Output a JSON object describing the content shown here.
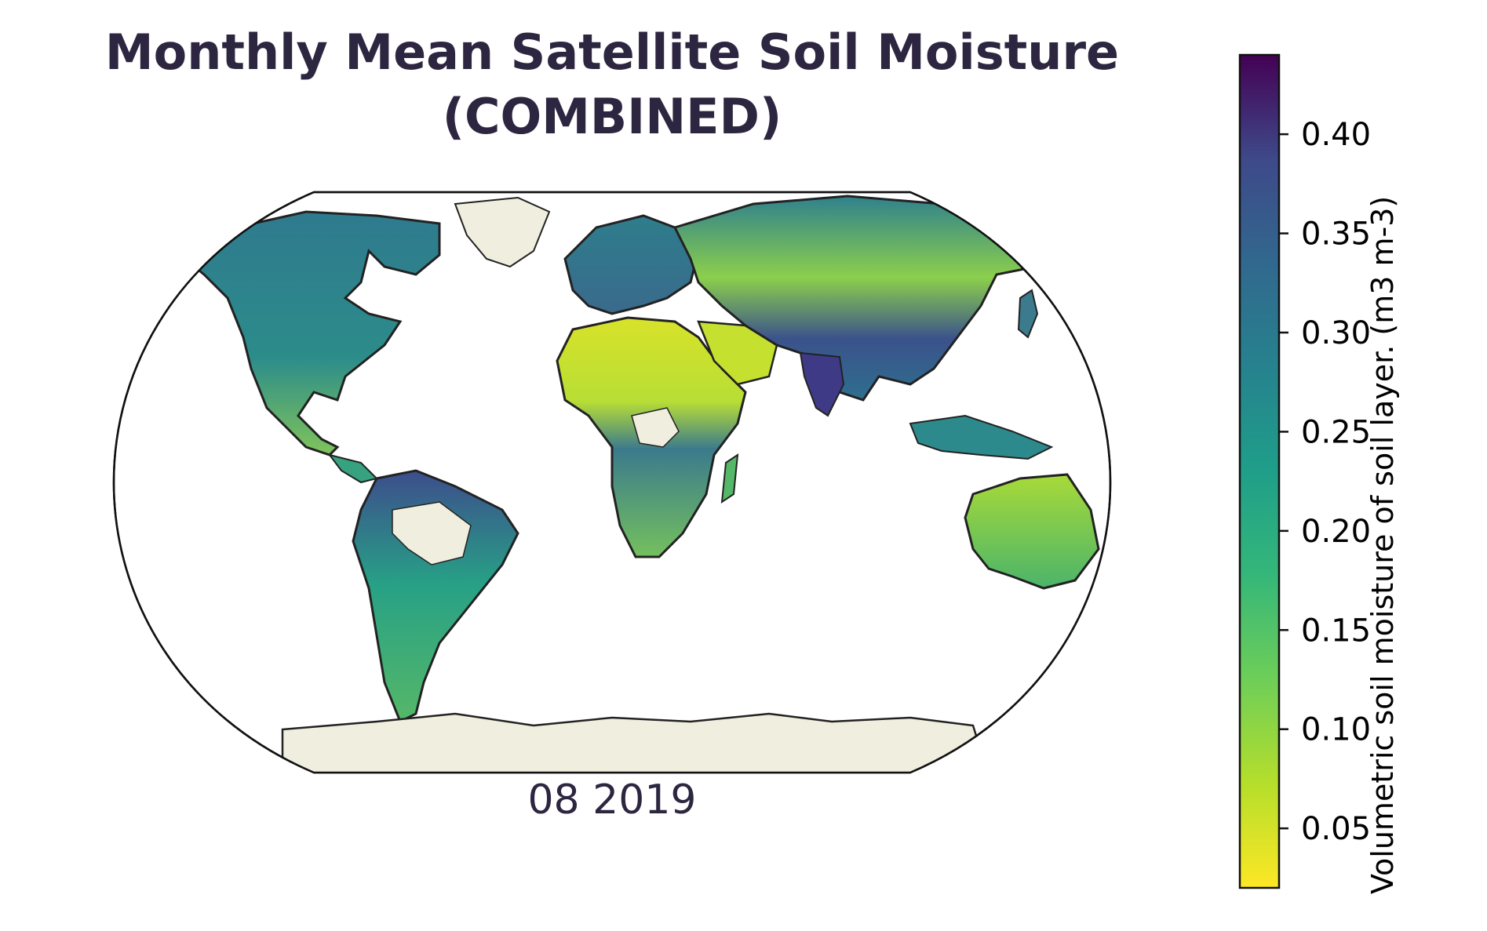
{
  "title": {
    "line1": "Monthly Mean Satellite Soil Moisture",
    "line2": "(COMBINED)"
  },
  "date_label": "08 2019",
  "colorbar": {
    "label": "Volumetric soil moisture of soil layer. (m3 m-3)",
    "colormap": "viridis (reversed)",
    "range": [
      0.02,
      0.44
    ],
    "ticks": [
      {
        "value": 0.4,
        "label": "0.40"
      },
      {
        "value": 0.35,
        "label": "0.35"
      },
      {
        "value": 0.3,
        "label": "0.30"
      },
      {
        "value": 0.25,
        "label": "0.25"
      },
      {
        "value": 0.2,
        "label": "0.20"
      },
      {
        "value": 0.15,
        "label": "0.15"
      },
      {
        "value": 0.1,
        "label": "0.10"
      },
      {
        "value": 0.05,
        "label": "0.05"
      }
    ]
  },
  "map": {
    "projection": "Robinson",
    "no_data_land_color": "#f0eede",
    "ocean_color": "#ffffff"
  }
}
